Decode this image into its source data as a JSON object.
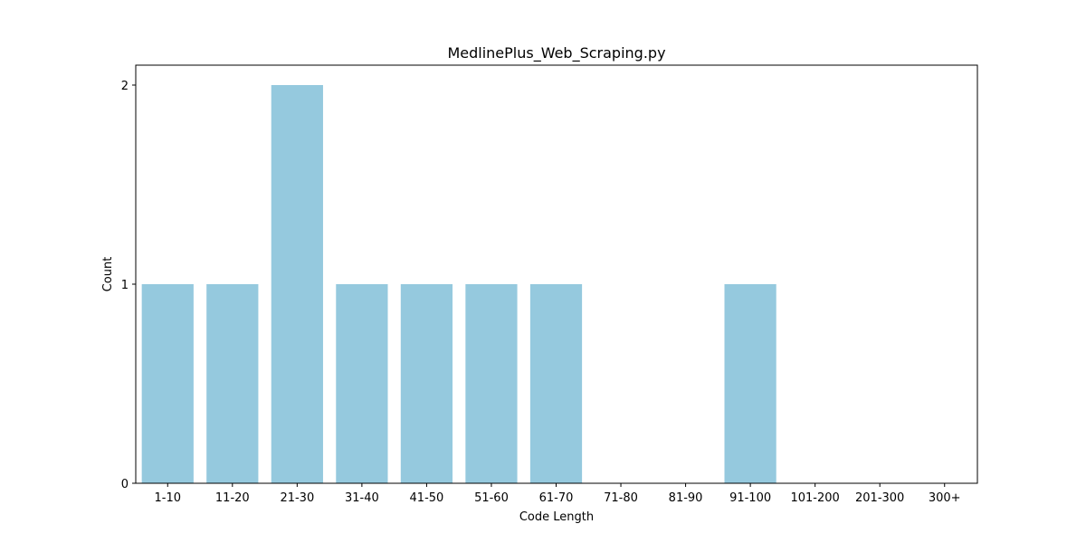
{
  "chart_data": {
    "type": "bar",
    "title": "MedlinePlus_Web_Scraping.py",
    "xlabel": "Code Length",
    "ylabel": "Count",
    "categories": [
      "1-10",
      "11-20",
      "21-30",
      "31-40",
      "41-50",
      "51-60",
      "61-70",
      "71-80",
      "81-90",
      "91-100",
      "101-200",
      "201-300",
      "300+"
    ],
    "values": [
      1,
      1,
      2,
      1,
      1,
      1,
      1,
      0,
      0,
      1,
      0,
      0,
      0
    ],
    "yticks": [
      "0",
      "1",
      "2"
    ],
    "ylim": [
      0,
      2.1
    ],
    "grid": false,
    "bar_color": "#95c9de"
  }
}
